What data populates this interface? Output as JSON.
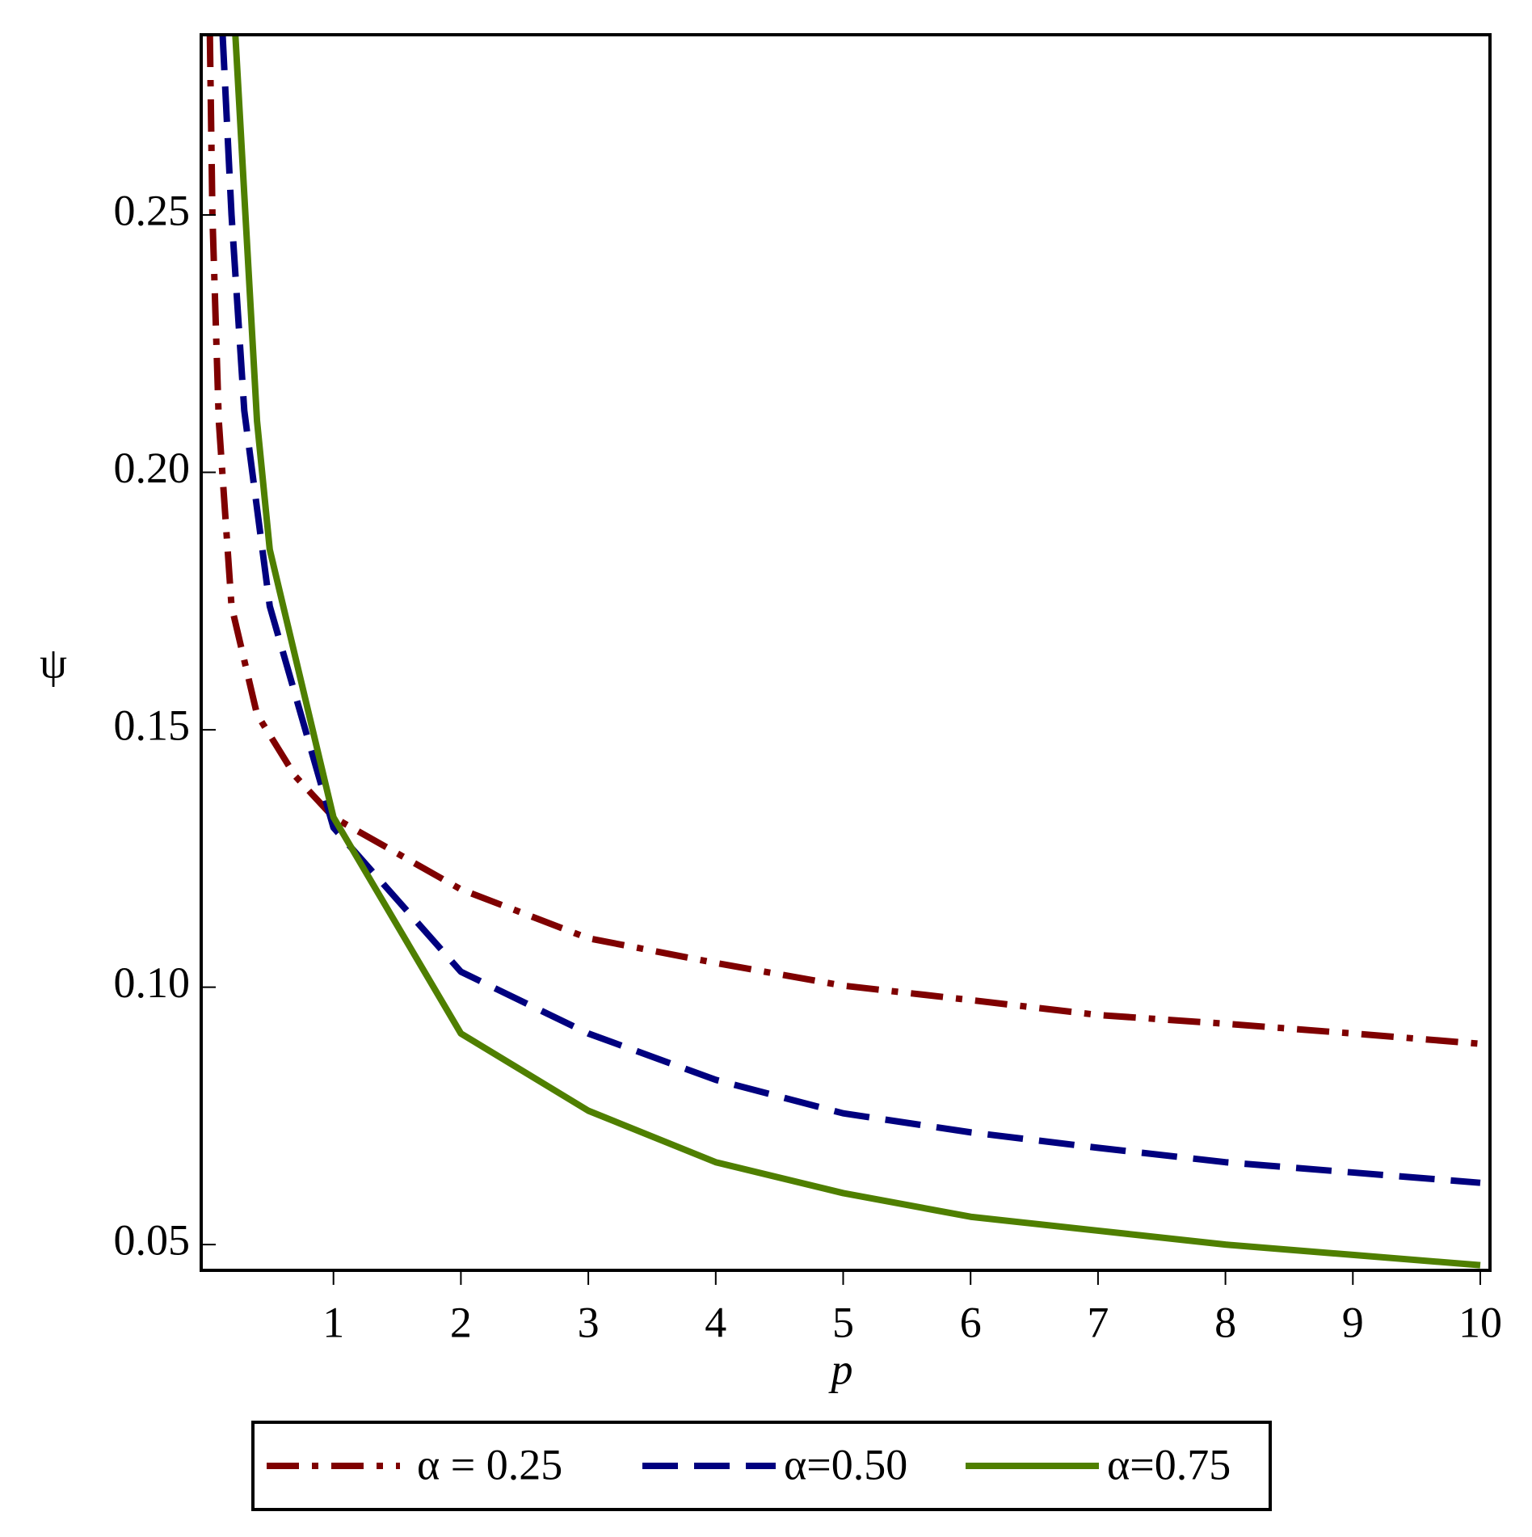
{
  "chart_data": {
    "type": "line",
    "x_label": "p",
    "y_label": "ψ",
    "xlim": [
      0,
      10
    ],
    "ylim": [
      0.045,
      0.285
    ],
    "xticks": [
      1,
      2,
      3,
      4,
      5,
      6,
      7,
      8,
      9,
      10
    ],
    "yticks": [
      0.05,
      {
        "value": 0.1,
        "label": "0.10"
      },
      0.15,
      {
        "value": 0.2,
        "label": "0.20"
      },
      0.25
    ],
    "series": [
      {
        "name": "α = 0.25",
        "color": "#7f0000",
        "line_style": "dashdot",
        "x": [
          0.03,
          0.05,
          0.1,
          0.2,
          0.4,
          0.7,
          1,
          2,
          3,
          4,
          5,
          6,
          7,
          8,
          9,
          10
        ],
        "values": [
          0.285,
          0.25,
          0.21,
          0.174,
          0.153,
          0.141,
          0.133,
          0.119,
          0.1095,
          0.1047,
          0.1003,
          0.0975,
          0.0946,
          0.0929,
          0.091,
          0.089
        ]
      },
      {
        "name": "α=0.50",
        "color": "#00007f",
        "line_style": "dashed",
        "x": [
          0.13,
          0.2,
          0.3,
          0.5,
          1,
          2,
          3,
          4,
          5,
          6,
          7,
          8,
          9,
          10
        ],
        "values": [
          0.285,
          0.25,
          0.212,
          0.174,
          0.131,
          0.103,
          0.091,
          0.082,
          0.0755,
          0.0718,
          0.0688,
          0.066,
          0.064,
          0.062
        ]
      },
      {
        "name": "α=0.75",
        "color": "#4f7f00",
        "line_style": "solid",
        "x": [
          0.23,
          0.3,
          0.4,
          0.5,
          1,
          2,
          3,
          4,
          5,
          6,
          7,
          8,
          9,
          10
        ],
        "values": [
          0.285,
          0.254,
          0.21,
          0.185,
          0.133,
          0.091,
          0.076,
          0.066,
          0.06,
          0.0554,
          0.0527,
          0.05,
          0.048,
          0.046
        ]
      }
    ],
    "legend": "bottom"
  }
}
